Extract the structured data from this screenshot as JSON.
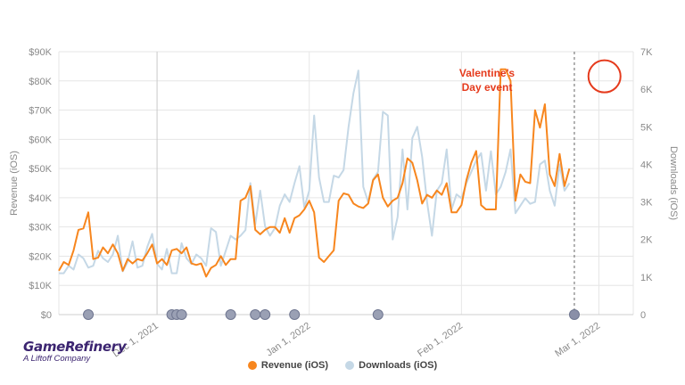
{
  "chart_data": {
    "type": "line",
    "x_labels": [
      "Dec 1, 2021",
      "Jan 1, 2022",
      "Feb 1, 2022",
      "Mar 1, 2022"
    ],
    "y_left": {
      "label": "Revenue (iOS)",
      "ylim": [
        0,
        90000
      ],
      "ticks": [
        "$0",
        "$10K",
        "$20K",
        "$30K",
        "$40K",
        "$50K",
        "$60K",
        "$70K",
        "$80K",
        "$90K"
      ]
    },
    "y_right": {
      "label": "Downloads (iOS)",
      "ylim": [
        0,
        7000
      ],
      "ticks": [
        "0",
        "1K",
        "2K",
        "3K",
        "4K",
        "5K",
        "6K",
        "7K"
      ]
    },
    "x_range_days": [
      -20,
      97
    ],
    "series": [
      {
        "name": "Revenue (iOS)",
        "color": "#f7861e",
        "axis": "left",
        "values": [
          15000,
          18000,
          17000,
          22000,
          29000,
          29500,
          35000,
          19000,
          19500,
          23000,
          21000,
          24000,
          21000,
          15000,
          19000,
          17500,
          19000,
          18500,
          21000,
          24000,
          17500,
          19000,
          17000,
          22000,
          22500,
          21000,
          23000,
          17500,
          17000,
          17500,
          13000,
          16000,
          17000,
          20000,
          17000,
          19000,
          19000,
          39000,
          40000,
          44000,
          29000,
          27500,
          29000,
          30000,
          30000,
          28000,
          33000,
          28000,
          33000,
          34000,
          36000,
          39000,
          35000,
          19500,
          18000,
          20000,
          22000,
          39000,
          41500,
          41000,
          38000,
          37000,
          36500,
          38000,
          46000,
          48000,
          40000,
          37000,
          39000,
          40000,
          45000,
          53500,
          52000,
          46000,
          38000,
          41000,
          40000,
          42500,
          41000,
          45000,
          35000,
          35000,
          37500,
          46000,
          52000,
          56000,
          37500,
          36000,
          36000,
          36000,
          84000,
          84000,
          80000,
          39000,
          48000,
          45500,
          45000,
          70000,
          64000,
          72000,
          48000,
          44000,
          55000,
          44000,
          50000
        ],
        "x_start": -20,
        "x_step": 1
      },
      {
        "name": "Downloads (iOS)",
        "color": "#c5d8e6",
        "axis": "right",
        "values": [
          1100,
          1100,
          1300,
          1200,
          1600,
          1500,
          1250,
          1300,
          1700,
          1500,
          1400,
          1600,
          2100,
          1150,
          1400,
          1950,
          1250,
          1300,
          1800,
          2150,
          1350,
          1200,
          1750,
          1100,
          1100,
          1900,
          1500,
          1350,
          1600,
          1500,
          1300,
          2300,
          2200,
          1300,
          1700,
          2100,
          2000,
          2100,
          2250,
          3500,
          2400,
          3300,
          2350,
          2100,
          2300,
          2900,
          3200,
          3000,
          3500,
          3950,
          2850,
          3300,
          5300,
          3650,
          3000,
          3000,
          3700,
          3650,
          3850,
          5000,
          5900,
          6500,
          3400,
          3000,
          3600,
          3800,
          5400,
          5300,
          2000,
          2600,
          4400,
          2800,
          4700,
          5000,
          4200,
          3000,
          2100,
          3300,
          3500,
          4400,
          2800,
          3200,
          3100,
          3500,
          3800,
          4100,
          4300,
          3300,
          4350,
          3200,
          3400,
          3800,
          4400,
          2700,
          2900,
          3100,
          2950,
          3000,
          4000,
          4100,
          3300,
          2900,
          4000,
          3300,
          3500
        ],
        "x_start": -20,
        "x_step": 1
      }
    ],
    "annotation": {
      "text": [
        "Valentine's",
        "Day event"
      ],
      "x_day": 91.5,
      "y_value": 84000,
      "color": "#e53a1c"
    },
    "event_line_day": 85,
    "markers": [
      {
        "day": -14,
        "color": "#9aa0b4"
      },
      {
        "day": 3,
        "color": "#9aa0b4"
      },
      {
        "day": 4,
        "color": "#9aa0b4"
      },
      {
        "day": 5,
        "color": "#9aa0b4"
      },
      {
        "day": 15,
        "color": "#9aa0b4"
      },
      {
        "day": 20,
        "color": "#9aa0b4"
      },
      {
        "day": 22,
        "color": "#9aa0b4"
      },
      {
        "day": 28,
        "color": "#9aa0b4"
      },
      {
        "day": 45,
        "color": "#9aa0b4"
      },
      {
        "day": 85,
        "color": "#8a8fa8"
      }
    ],
    "legend": [
      {
        "label": "Revenue (iOS)",
        "color": "#f7861e"
      },
      {
        "label": "Downloads (iOS)",
        "color": "#c5d8e6"
      }
    ],
    "legend_position": "bottom"
  },
  "logo": {
    "name": "GameRefinery",
    "subtitle": "A Liftoff Company"
  }
}
